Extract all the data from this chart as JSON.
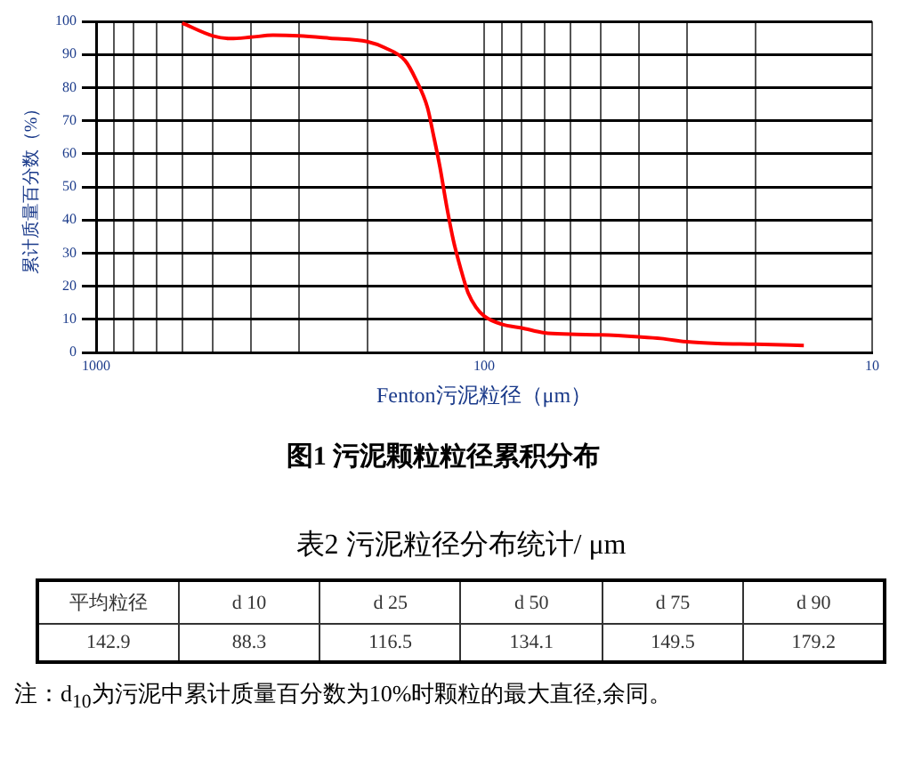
{
  "chart_data": [
    {
      "type": "line",
      "title": "图1 污泥颗粒粒径累积分布",
      "xlabel": "Fenton污泥粒径（μm）",
      "ylabel": "累计质量百分数（%）",
      "log": "x",
      "xlim": [
        1000,
        10
      ],
      "ylim": [
        0,
        100
      ],
      "xticks": [
        1000,
        {
          "value": 900,
          "label": null
        },
        {
          "value": 800,
          "label": null
        },
        {
          "value": 700,
          "label": null
        },
        {
          "value": 600,
          "label": null
        },
        {
          "value": 500,
          "label": null
        },
        {
          "value": 400,
          "label": null
        },
        {
          "value": 300,
          "label": null
        },
        {
          "value": 200,
          "label": null
        },
        100,
        {
          "value": 90,
          "label": null
        },
        {
          "value": 80,
          "label": null
        },
        {
          "value": 70,
          "label": null
        },
        {
          "value": 60,
          "label": null
        },
        {
          "value": 50,
          "label": null
        },
        {
          "value": 40,
          "label": null
        },
        {
          "value": 30,
          "label": null
        },
        {
          "value": 20,
          "label": null
        },
        10
      ],
      "yticks": [
        0,
        10,
        20,
        30,
        40,
        50,
        60,
        70,
        80,
        90,
        100
      ],
      "grid": true,
      "legend": false,
      "marker": "none",
      "line_style": "solid",
      "series": [
        {
          "color": "#ff0000",
          "x": [
            600,
            500,
            450,
            400,
            350,
            300,
            250,
            200,
            180,
            160,
            150,
            140,
            135,
            130,
            125,
            120,
            115,
            110,
            105,
            100,
            90,
            80,
            70,
            60,
            50,
            40,
            35,
            30,
            25,
            20,
            15
          ],
          "values": [
            99.5,
            95.6,
            94.8,
            95.2,
            95.8,
            95.6,
            94.9,
            93.9,
            92,
            88.2,
            82.5,
            74,
            65.5,
            56,
            44.4,
            33.8,
            25.4,
            18,
            13.7,
            11,
            8.5,
            7.4,
            5.9,
            5.5,
            5.3,
            4.7,
            4.2,
            3.2,
            2.7,
            2.5,
            2.1
          ]
        }
      ]
    },
    {
      "type": "other",
      "title": "表2 污泥粒径分布统计/ μm",
      "categories": [
        "平均粒径",
        "d 10",
        "d 25",
        "d 50",
        "d 75",
        "d 90"
      ],
      "values": [
        142.9,
        88.3,
        116.5,
        134.1,
        149.5,
        179.2
      ],
      "data_labels": true,
      "annotations": [
        "注：d$_{10}$为污泥中累计质量百分数为10%时颗粒的最大直径,余同。"
      ]
    }
  ]
}
